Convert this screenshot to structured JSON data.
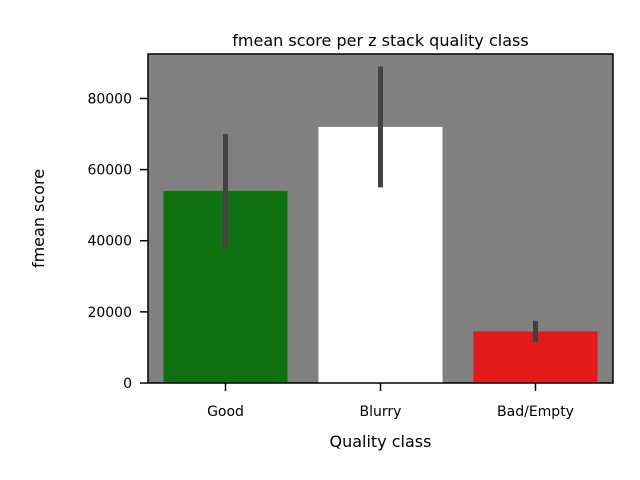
{
  "chart_data": {
    "type": "bar",
    "title": "fmean score per z stack quality class",
    "xlabel": "Quality class",
    "ylabel": "fmean score",
    "categories": [
      "Good",
      "Blurry",
      "Bad/Empty"
    ],
    "values": [
      54000,
      72000,
      14500
    ],
    "error_low": [
      38000,
      55000,
      11500
    ],
    "error_high": [
      70000,
      89000,
      17500
    ],
    "ylim": [
      0,
      92500
    ],
    "yticks": [
      0,
      20000,
      40000,
      60000,
      80000
    ],
    "ytick_labels": [
      "0",
      "20000",
      "40000",
      "60000",
      "80000"
    ],
    "grid": false,
    "background_color": "#808080",
    "bar_colors": [
      "#11700f",
      "#ffffff",
      "#e31a1c"
    ],
    "error_color": "#424242"
  }
}
